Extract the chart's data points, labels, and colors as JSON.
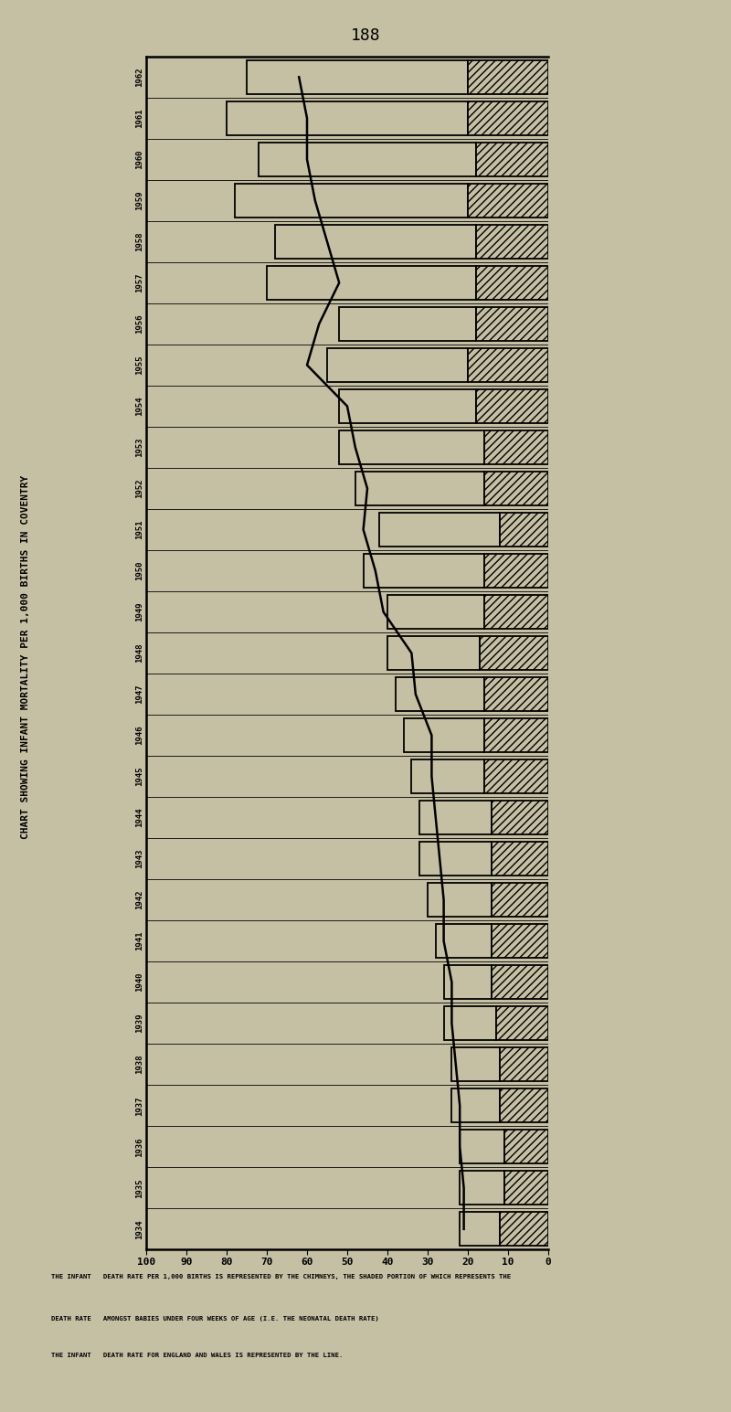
{
  "page_number": "188",
  "chart_title": "CHART SHOWING INFANT MORTALITY PER 1,000 BIRTHS IN COVENTRY",
  "years": [
    1934,
    1935,
    1936,
    1937,
    1938,
    1939,
    1940,
    1941,
    1942,
    1943,
    1944,
    1945,
    1946,
    1947,
    1948,
    1949,
    1950,
    1951,
    1952,
    1953,
    1954,
    1955,
    1956,
    1957,
    1958,
    1959,
    1960,
    1961,
    1962
  ],
  "total_coventry": [
    75,
    80,
    72,
    78,
    68,
    70,
    52,
    55,
    52,
    52,
    48,
    42,
    46,
    40,
    40,
    38,
    36,
    34,
    32,
    32,
    30,
    28,
    26,
    26,
    24,
    24,
    22,
    22,
    22
  ],
  "neonatal_coventry": [
    20,
    20,
    18,
    20,
    18,
    18,
    18,
    20,
    18,
    16,
    16,
    12,
    16,
    16,
    17,
    16,
    16,
    16,
    14,
    14,
    14,
    14,
    14,
    13,
    12,
    12,
    11,
    11,
    12
  ],
  "england_wales": [
    62,
    60,
    60,
    58,
    55,
    52,
    57,
    60,
    50,
    48,
    45,
    46,
    43,
    41,
    34,
    33,
    29,
    29,
    28,
    27,
    26,
    26,
    24,
    24,
    23,
    22,
    22,
    21,
    21
  ],
  "background_color": "#c5c0a4",
  "hatch_pattern": "////",
  "xlim": [
    0,
    100
  ],
  "xticks": [
    0,
    10,
    20,
    30,
    40,
    50,
    60,
    70,
    80,
    90,
    100
  ],
  "footnote_line1": "THE INFANT   DEATH RATE PER 1,000 BIRTHS IS REPRESENTED BY THE CHIMNEYS, THE SHADED PORTION OF WHICH REPRESENTS THE",
  "footnote_line2": "DEATH RATE   AMONGST BABIES UNDER FOUR WEEKS OF AGE (I.E. THE NEONATAL DEATH RATE)",
  "footnote_line3": "THE INFANT   DEATH RATE FOR ENGLAND AND WALES IS REPRESENTED BY THE LINE."
}
